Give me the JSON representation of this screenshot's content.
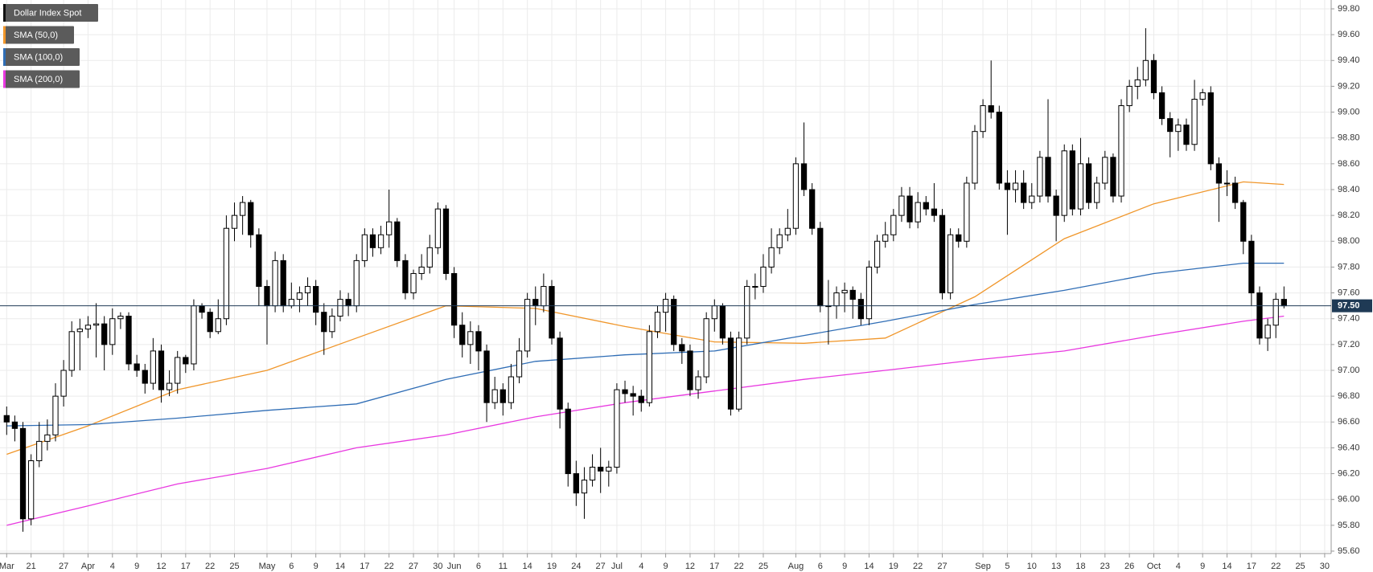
{
  "chart_data": {
    "type": "candlestick",
    "name": "Dollar Index Spot",
    "color": "#000000",
    "up_color": "#ffffff",
    "down_color": "#000000",
    "xlim": [
      -0.82,
      162.8
    ],
    "ylim": [
      95.6,
      99.8
    ],
    "grid": true,
    "legend": "top-left",
    "last_price": {
      "value": 97.5,
      "label": "97.50"
    },
    "yticks": [
      {
        "value": 95.6,
        "label": "95.60"
      },
      {
        "value": 95.8,
        "label": "95.80"
      },
      {
        "value": 96.0,
        "label": "96.00"
      },
      {
        "value": 96.2,
        "label": "96.20"
      },
      {
        "value": 96.4,
        "label": "96.40"
      },
      {
        "value": 96.6,
        "label": "96.60"
      },
      {
        "value": 96.8,
        "label": "96.80"
      },
      {
        "value": 97.0,
        "label": "97.00"
      },
      {
        "value": 97.2,
        "label": "97.20"
      },
      {
        "value": 97.4,
        "label": "97.40"
      },
      {
        "value": 97.6,
        "label": "97.60"
      },
      {
        "value": 97.8,
        "label": "97.80"
      },
      {
        "value": 98.0,
        "label": "98.00"
      },
      {
        "value": 98.2,
        "label": "98.20"
      },
      {
        "value": 98.4,
        "label": "98.40"
      },
      {
        "value": 98.6,
        "label": "98.60"
      },
      {
        "value": 98.8,
        "label": "98.80"
      },
      {
        "value": 99.0,
        "label": "99.00"
      },
      {
        "value": 99.2,
        "label": "99.20"
      },
      {
        "value": 99.4,
        "label": "99.40"
      },
      {
        "value": 99.6,
        "label": "99.60"
      },
      {
        "value": 99.8,
        "label": "99.80"
      }
    ],
    "xticks": [
      {
        "value": 0,
        "label": "Mar"
      },
      {
        "value": 3,
        "label": "21"
      },
      {
        "value": 7,
        "label": "27"
      },
      {
        "value": 10,
        "label": "Apr"
      },
      {
        "value": 13,
        "label": "4"
      },
      {
        "value": 16,
        "label": "9"
      },
      {
        "value": 19,
        "label": "12"
      },
      {
        "value": 22,
        "label": "17"
      },
      {
        "value": 25,
        "label": "22"
      },
      {
        "value": 28,
        "label": "25"
      },
      {
        "value": 32,
        "label": "May"
      },
      {
        "value": 35,
        "label": "6"
      },
      {
        "value": 38,
        "label": "9"
      },
      {
        "value": 41,
        "label": "14"
      },
      {
        "value": 44,
        "label": "17"
      },
      {
        "value": 47,
        "label": "22"
      },
      {
        "value": 50,
        "label": "27"
      },
      {
        "value": 53,
        "label": "30"
      },
      {
        "value": 55,
        "label": "Jun"
      },
      {
        "value": 58,
        "label": "6"
      },
      {
        "value": 61,
        "label": "11"
      },
      {
        "value": 64,
        "label": "14"
      },
      {
        "value": 67,
        "label": "19"
      },
      {
        "value": 70,
        "label": "24"
      },
      {
        "value": 73,
        "label": "27"
      },
      {
        "value": 75,
        "label": "Jul"
      },
      {
        "value": 78,
        "label": "4"
      },
      {
        "value": 81,
        "label": "9"
      },
      {
        "value": 84,
        "label": "12"
      },
      {
        "value": 87,
        "label": "17"
      },
      {
        "value": 90,
        "label": "22"
      },
      {
        "value": 93,
        "label": "25"
      },
      {
        "value": 97,
        "label": "Aug"
      },
      {
        "value": 100,
        "label": "6"
      },
      {
        "value": 103,
        "label": "9"
      },
      {
        "value": 106,
        "label": "14"
      },
      {
        "value": 109,
        "label": "19"
      },
      {
        "value": 112,
        "label": "22"
      },
      {
        "value": 115,
        "label": "27"
      },
      {
        "value": 120,
        "label": "Sep"
      },
      {
        "value": 123,
        "label": "5"
      },
      {
        "value": 126,
        "label": "10"
      },
      {
        "value": 129,
        "label": "13"
      },
      {
        "value": 132,
        "label": "18"
      },
      {
        "value": 135,
        "label": "23"
      },
      {
        "value": 138,
        "label": "26"
      },
      {
        "value": 141,
        "label": "Oct"
      },
      {
        "value": 144,
        "label": "4"
      },
      {
        "value": 147,
        "label": "9"
      },
      {
        "value": 150,
        "label": "14"
      },
      {
        "value": 153,
        "label": "17"
      },
      {
        "value": 156,
        "label": "22"
      },
      {
        "value": 159,
        "label": "25"
      },
      {
        "value": 162,
        "label": "30"
      }
    ],
    "candles": [
      [
        96.65,
        96.72,
        96.5,
        96.6
      ],
      [
        96.6,
        96.65,
        96.45,
        96.55
      ],
      [
        96.55,
        96.6,
        95.75,
        95.85
      ],
      [
        95.85,
        96.35,
        95.8,
        96.3
      ],
      [
        96.3,
        96.6,
        96.25,
        96.45
      ],
      [
        96.45,
        96.62,
        96.38,
        96.5
      ],
      [
        96.5,
        96.9,
        96.45,
        96.8
      ],
      [
        96.8,
        97.08,
        96.72,
        97.0
      ],
      [
        97.0,
        97.38,
        96.95,
        97.3
      ],
      [
        97.3,
        97.4,
        97.0,
        97.32
      ],
      [
        97.32,
        97.42,
        97.25,
        97.35
      ],
      [
        97.35,
        97.52,
        97.1,
        97.36
      ],
      [
        97.36,
        97.42,
        97.0,
        97.2
      ],
      [
        97.2,
        97.48,
        97.12,
        97.4
      ],
      [
        97.4,
        97.45,
        97.32,
        97.42
      ],
      [
        97.42,
        97.45,
        97.0,
        97.05
      ],
      [
        97.05,
        97.12,
        96.95,
        97.0
      ],
      [
        97.0,
        97.05,
        96.82,
        96.9
      ],
      [
        96.9,
        97.25,
        96.85,
        97.15
      ],
      [
        97.15,
        97.2,
        96.75,
        96.85
      ],
      [
        96.85,
        97.0,
        96.8,
        96.9
      ],
      [
        96.9,
        97.15,
        96.82,
        97.1
      ],
      [
        97.1,
        97.12,
        96.98,
        97.05
      ],
      [
        97.05,
        97.55,
        97.0,
        97.5
      ],
      [
        97.5,
        97.52,
        97.4,
        97.45
      ],
      [
        97.45,
        97.48,
        97.25,
        97.3
      ],
      [
        97.3,
        97.55,
        97.28,
        97.4
      ],
      [
        97.4,
        98.2,
        97.35,
        98.1
      ],
      [
        98.1,
        98.3,
        98.0,
        98.2
      ],
      [
        98.2,
        98.35,
        98.05,
        98.3
      ],
      [
        98.3,
        98.32,
        97.95,
        98.05
      ],
      [
        98.05,
        98.1,
        97.5,
        97.65
      ],
      [
        97.65,
        97.7,
        97.2,
        97.5
      ],
      [
        97.5,
        97.92,
        97.45,
        97.85
      ],
      [
        97.85,
        97.9,
        97.45,
        97.5
      ],
      [
        97.5,
        97.68,
        97.48,
        97.55
      ],
      [
        97.55,
        97.65,
        97.45,
        97.6
      ],
      [
        97.6,
        97.72,
        97.5,
        97.65
      ],
      [
        97.65,
        97.7,
        97.35,
        97.45
      ],
      [
        97.45,
        97.52,
        97.12,
        97.3
      ],
      [
        97.3,
        97.48,
        97.25,
        97.42
      ],
      [
        97.42,
        97.62,
        97.38,
        97.55
      ],
      [
        97.55,
        97.6,
        97.42,
        97.5
      ],
      [
        97.5,
        97.9,
        97.45,
        97.85
      ],
      [
        97.85,
        98.1,
        97.8,
        98.05
      ],
      [
        98.05,
        98.1,
        97.88,
        97.95
      ],
      [
        97.95,
        98.12,
        97.9,
        98.05
      ],
      [
        98.05,
        98.4,
        97.95,
        98.15
      ],
      [
        98.15,
        98.18,
        97.8,
        97.85
      ],
      [
        97.85,
        97.9,
        97.55,
        97.6
      ],
      [
        97.6,
        97.78,
        97.55,
        97.75
      ],
      [
        97.75,
        97.9,
        97.7,
        97.8
      ],
      [
        97.8,
        98.05,
        97.75,
        97.95
      ],
      [
        97.95,
        98.3,
        97.9,
        98.25
      ],
      [
        98.25,
        98.28,
        97.7,
        97.75
      ],
      [
        97.75,
        97.8,
        97.25,
        97.35
      ],
      [
        97.35,
        97.45,
        97.1,
        97.2
      ],
      [
        97.2,
        97.38,
        97.05,
        97.3
      ],
      [
        97.3,
        97.35,
        97.0,
        97.15
      ],
      [
        97.15,
        97.2,
        96.6,
        96.75
      ],
      [
        96.75,
        96.95,
        96.7,
        96.85
      ],
      [
        96.85,
        96.9,
        96.65,
        96.75
      ],
      [
        96.75,
        97.05,
        96.7,
        96.95
      ],
      [
        96.95,
        97.25,
        96.9,
        97.15
      ],
      [
        97.15,
        97.6,
        97.1,
        97.55
      ],
      [
        97.55,
        97.65,
        97.35,
        97.5
      ],
      [
        97.5,
        97.75,
        97.45,
        97.65
      ],
      [
        97.65,
        97.7,
        97.2,
        97.25
      ],
      [
        97.25,
        97.3,
        96.55,
        96.7
      ],
      [
        96.7,
        96.75,
        96.1,
        96.2
      ],
      [
        96.2,
        96.3,
        95.95,
        96.05
      ],
      [
        96.05,
        96.25,
        95.85,
        96.15
      ],
      [
        96.15,
        96.35,
        96.1,
        96.25
      ],
      [
        96.25,
        96.4,
        96.05,
        96.22
      ],
      [
        96.22,
        96.3,
        96.1,
        96.25
      ],
      [
        96.25,
        96.9,
        96.2,
        96.85
      ],
      [
        96.85,
        96.92,
        96.75,
        96.82
      ],
      [
        96.82,
        96.88,
        96.65,
        96.8
      ],
      [
        96.8,
        96.85,
        96.68,
        96.75
      ],
      [
        96.75,
        97.35,
        96.72,
        97.3
      ],
      [
        97.3,
        97.5,
        97.25,
        97.45
      ],
      [
        97.45,
        97.6,
        97.3,
        97.55
      ],
      [
        97.55,
        97.58,
        97.15,
        97.2
      ],
      [
        97.2,
        97.25,
        97.05,
        97.15
      ],
      [
        97.15,
        97.2,
        96.8,
        96.85
      ],
      [
        96.85,
        97.0,
        96.78,
        96.95
      ],
      [
        96.95,
        97.45,
        96.9,
        97.4
      ],
      [
        97.4,
        97.55,
        97.3,
        97.5
      ],
      [
        97.5,
        97.52,
        97.2,
        97.25
      ],
      [
        97.25,
        97.3,
        96.65,
        96.7
      ],
      [
        96.7,
        97.3,
        96.68,
        97.25
      ],
      [
        97.25,
        97.7,
        97.2,
        97.65
      ],
      [
        97.65,
        97.75,
        97.55,
        97.65
      ],
      [
        97.65,
        97.9,
        97.6,
        97.8
      ],
      [
        97.8,
        98.1,
        97.75,
        97.95
      ],
      [
        97.95,
        98.1,
        97.9,
        98.05
      ],
      [
        98.05,
        98.25,
        98.0,
        98.1
      ],
      [
        98.1,
        98.65,
        98.05,
        98.6
      ],
      [
        98.6,
        98.92,
        98.35,
        98.4
      ],
      [
        98.4,
        98.45,
        98.05,
        98.1
      ],
      [
        98.1,
        98.15,
        97.45,
        97.5
      ],
      [
        97.5,
        97.7,
        97.2,
        97.5
      ],
      [
        97.5,
        97.65,
        97.4,
        97.6
      ],
      [
        97.6,
        97.68,
        97.45,
        97.62
      ],
      [
        97.62,
        97.65,
        97.4,
        97.55
      ],
      [
        97.55,
        97.6,
        97.35,
        97.4
      ],
      [
        97.4,
        97.85,
        97.35,
        97.8
      ],
      [
        97.8,
        98.05,
        97.75,
        98.0
      ],
      [
        98.0,
        98.15,
        97.95,
        98.05
      ],
      [
        98.05,
        98.25,
        98.0,
        98.2
      ],
      [
        98.2,
        98.42,
        98.15,
        98.35
      ],
      [
        98.35,
        98.42,
        98.1,
        98.15
      ],
      [
        98.15,
        98.38,
        98.1,
        98.3
      ],
      [
        98.3,
        98.35,
        98.2,
        98.25
      ],
      [
        98.25,
        98.45,
        98.15,
        98.2
      ],
      [
        98.2,
        98.25,
        97.55,
        97.6
      ],
      [
        97.6,
        98.1,
        97.55,
        98.05
      ],
      [
        98.05,
        98.1,
        97.95,
        98.0
      ],
      [
        98.0,
        98.5,
        97.95,
        98.45
      ],
      [
        98.45,
        98.9,
        98.4,
        98.85
      ],
      [
        98.85,
        99.1,
        98.8,
        99.05
      ],
      [
        99.05,
        99.4,
        98.95,
        99.0
      ],
      [
        99.0,
        99.05,
        98.4,
        98.45
      ],
      [
        98.45,
        98.55,
        98.05,
        98.4
      ],
      [
        98.4,
        98.55,
        98.3,
        98.45
      ],
      [
        98.45,
        98.55,
        98.25,
        98.3
      ],
      [
        98.3,
        98.45,
        98.25,
        98.35
      ],
      [
        98.35,
        98.7,
        98.3,
        98.65
      ],
      [
        98.65,
        99.1,
        98.3,
        98.35
      ],
      [
        98.35,
        98.4,
        98.0,
        98.2
      ],
      [
        98.2,
        98.75,
        98.15,
        98.7
      ],
      [
        98.7,
        98.75,
        98.2,
        98.25
      ],
      [
        98.25,
        98.8,
        98.2,
        98.6
      ],
      [
        98.6,
        98.65,
        98.25,
        98.3
      ],
      [
        98.3,
        98.5,
        98.25,
        98.45
      ],
      [
        98.45,
        98.7,
        98.4,
        98.65
      ],
      [
        98.65,
        98.68,
        98.3,
        98.35
      ],
      [
        98.35,
        99.1,
        98.3,
        99.05
      ],
      [
        99.05,
        99.25,
        99.0,
        99.2
      ],
      [
        99.2,
        99.35,
        99.1,
        99.25
      ],
      [
        99.25,
        99.65,
        99.2,
        99.4
      ],
      [
        99.4,
        99.45,
        99.1,
        99.15
      ],
      [
        99.15,
        99.2,
        98.9,
        98.95
      ],
      [
        98.95,
        99.0,
        98.65,
        98.85
      ],
      [
        98.85,
        98.95,
        98.7,
        98.9
      ],
      [
        98.9,
        98.95,
        98.7,
        98.75
      ],
      [
        98.75,
        99.25,
        98.7,
        99.1
      ],
      [
        99.1,
        99.18,
        99.05,
        99.15
      ],
      [
        99.15,
        99.2,
        98.55,
        98.6
      ],
      [
        98.6,
        98.65,
        98.15,
        98.45
      ],
      [
        98.45,
        98.55,
        98.35,
        98.45
      ],
      [
        98.45,
        98.5,
        98.25,
        98.3
      ],
      [
        98.3,
        98.32,
        97.9,
        98.0
      ],
      [
        98.0,
        98.05,
        97.5,
        97.6
      ],
      [
        97.6,
        97.65,
        97.2,
        97.25
      ],
      [
        97.25,
        97.4,
        97.15,
        97.35
      ],
      [
        97.35,
        97.6,
        97.25,
        97.55
      ],
      [
        97.55,
        97.65,
        97.48,
        97.5
      ]
    ],
    "sma": [
      {
        "name": "SMA (50,0)",
        "color": "#f0962a",
        "x": [
          0,
          10,
          21,
          32,
          43,
          54,
          65,
          76,
          87,
          98,
          108,
          119,
          130,
          141,
          152,
          157
        ],
        "values": [
          96.35,
          96.57,
          96.85,
          97.0,
          97.25,
          97.5,
          97.48,
          97.34,
          97.22,
          97.21,
          97.25,
          97.57,
          98.02,
          98.29,
          98.46,
          98.44
        ]
      },
      {
        "name": "SMA (100,0)",
        "color": "#2f6db5",
        "x": [
          0,
          10,
          21,
          32,
          43,
          54,
          65,
          76,
          87,
          98,
          108,
          119,
          130,
          141,
          152,
          157
        ],
        "values": [
          96.57,
          96.58,
          96.63,
          96.69,
          96.74,
          96.93,
          97.07,
          97.12,
          97.15,
          97.27,
          97.38,
          97.51,
          97.62,
          97.75,
          97.83,
          97.83
        ]
      },
      {
        "name": "SMA (200,0)",
        "color": "#e838e0",
        "x": [
          0,
          10,
          21,
          32,
          43,
          54,
          65,
          76,
          87,
          98,
          108,
          119,
          130,
          141,
          152,
          157
        ],
        "values": [
          95.8,
          95.95,
          96.12,
          96.24,
          96.4,
          96.5,
          96.64,
          96.75,
          96.84,
          96.93,
          97.0,
          97.08,
          97.15,
          97.27,
          97.38,
          97.42
        ]
      }
    ]
  }
}
